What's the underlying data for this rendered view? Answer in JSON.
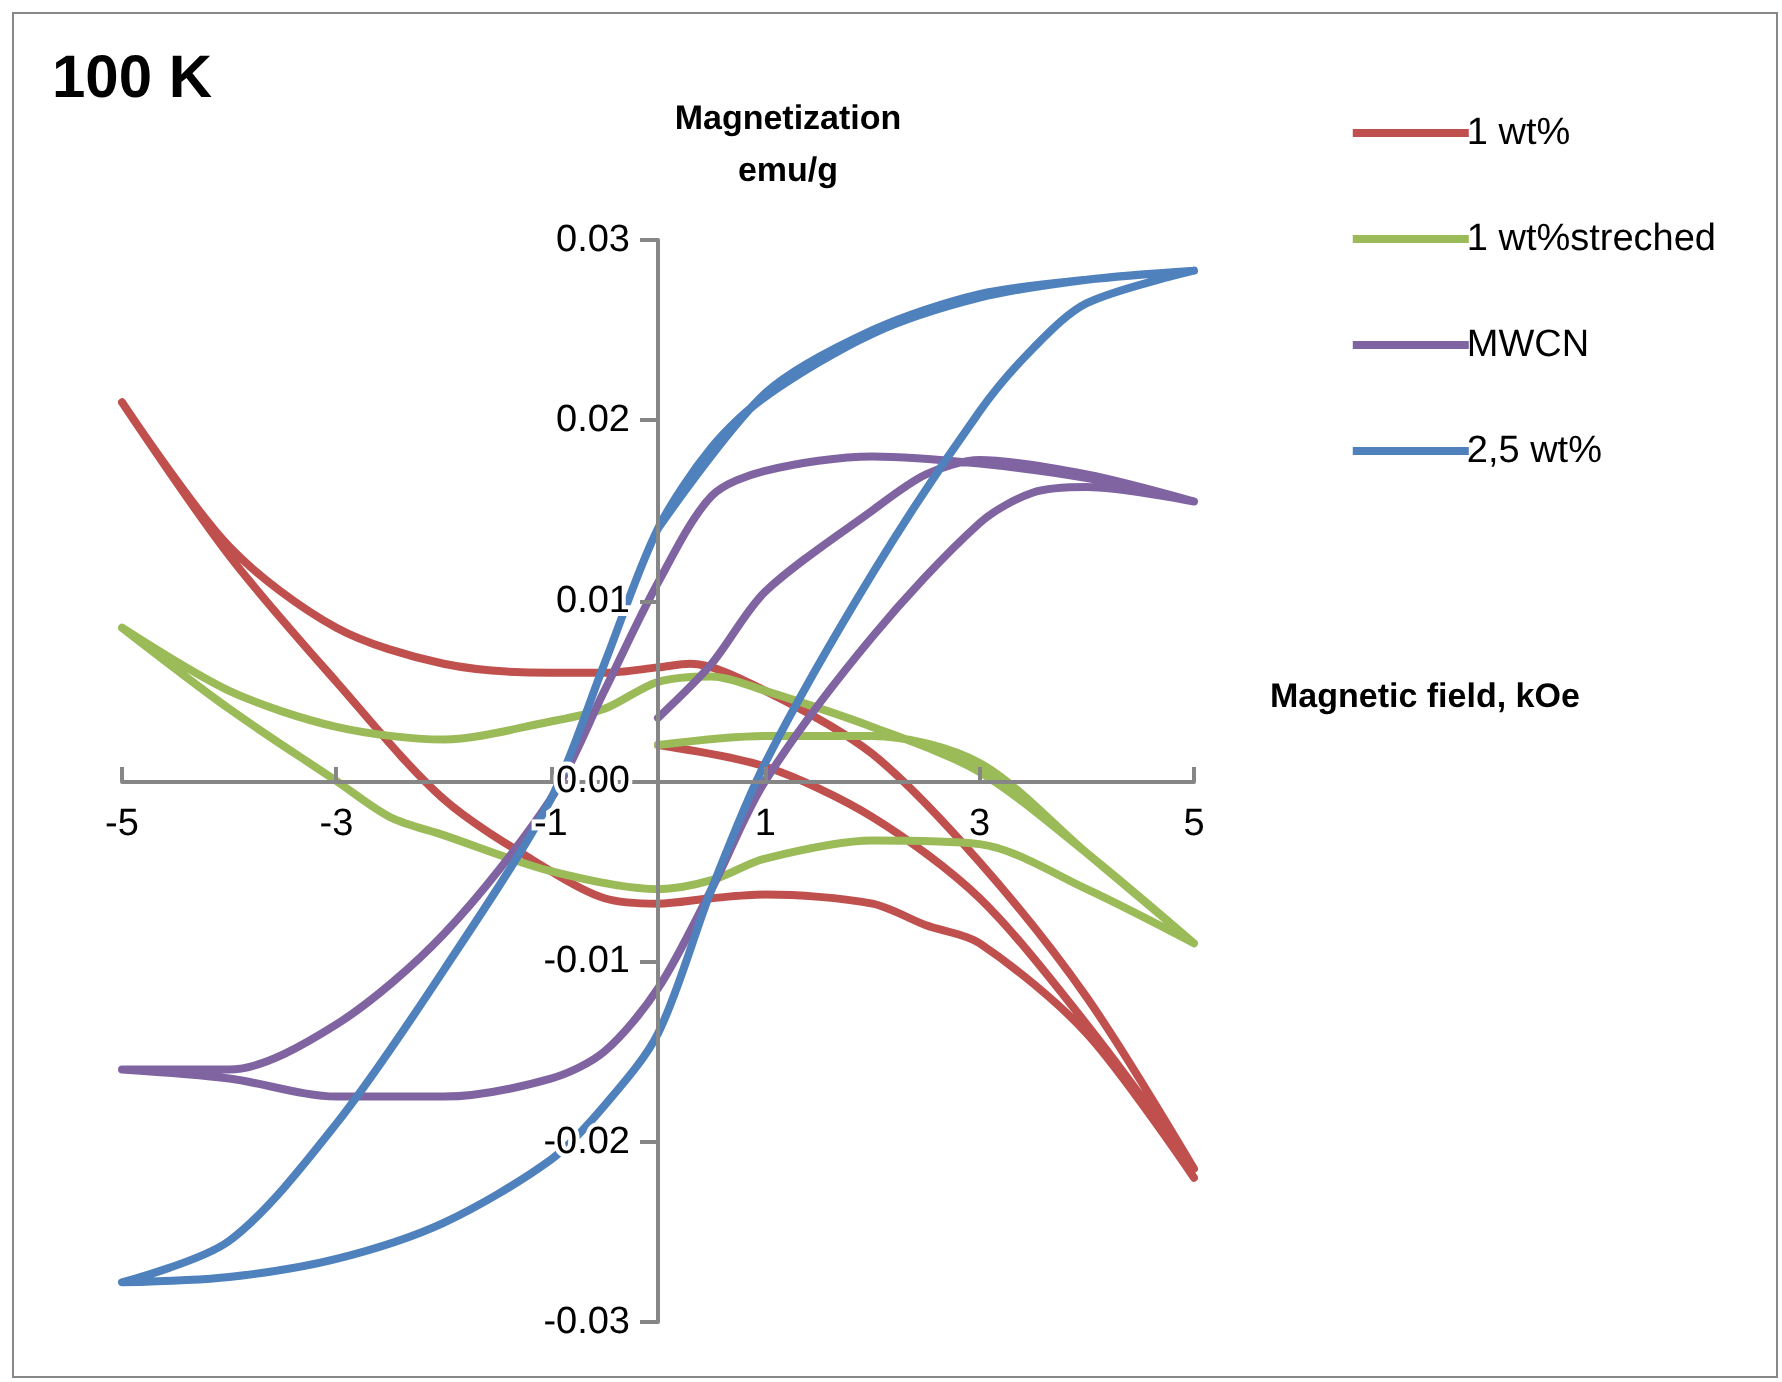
{
  "chart_data": {
    "type": "line",
    "title": "100 K",
    "xlabel": "Magnetic field, kOe",
    "ylabel": "Magnetization\nemu/g",
    "xlim": [
      -5,
      5
    ],
    "xticks": [
      -5,
      -3,
      -1,
      1,
      3,
      5
    ],
    "ylim": [
      -0.03,
      0.03
    ],
    "yticks": [
      -0.03,
      -0.02,
      -0.01,
      {
        "value": 0,
        "label": "0.00"
      },
      0.01,
      0.02,
      0.03
    ],
    "grid": false,
    "legend": "top right",
    "series": [
      {
        "name": "1 wt%",
        "color": "#c0504d",
        "x": [
          0,
          1,
          2,
          3,
          4,
          5,
          4,
          3,
          2,
          1,
          0.3,
          0,
          -0.5,
          -1,
          -2,
          -3,
          -4,
          -5,
          -4,
          -3,
          -2,
          -1,
          -0.5,
          0,
          0.5,
          1,
          2,
          2.5,
          3,
          4,
          5
        ],
        "values": [
          0.002,
          0.0008,
          -0.002,
          -0.0065,
          -0.0135,
          -0.0215,
          -0.012,
          -0.0045,
          0.0015,
          0.005,
          0.0065,
          0.0063,
          0.006,
          0.006,
          0.0065,
          0.0085,
          0.013,
          0.021,
          0.0125,
          0.0055,
          -0.001,
          -0.005,
          -0.0065,
          -0.0068,
          -0.0065,
          -0.0063,
          -0.0068,
          -0.008,
          -0.009,
          -0.014,
          -0.022
        ]
      },
      {
        "name": "1 wt%streched",
        "color": "#9bbb59",
        "x": [
          0,
          1,
          2,
          3,
          4,
          5,
          4,
          3,
          2,
          1,
          0.5,
          0,
          -0.5,
          -1,
          -2,
          -3,
          -4,
          -5,
          -4,
          -3,
          -2.5,
          -2,
          -1,
          0,
          0.5,
          1,
          2,
          3,
          4,
          5
        ],
        "values": [
          0.002,
          0.0025,
          0.0025,
          0.001,
          -0.004,
          -0.009,
          -0.004,
          0.0005,
          0.003,
          0.005,
          0.0058,
          0.0055,
          0.004,
          0.0033,
          0.0023,
          0.003,
          0.005,
          0.0085,
          0.004,
          0.0,
          -0.002,
          -0.003,
          -0.005,
          -0.006,
          -0.0055,
          -0.0043,
          -0.0033,
          -0.0035,
          -0.006,
          -0.009
        ]
      },
      {
        "name": "MWCN",
        "color": "#8064a2",
        "x": [
          0,
          0.5,
          1,
          2,
          2.5,
          3,
          4,
          5,
          4,
          3,
          2,
          1,
          0.5,
          0,
          -0.5,
          -1,
          -2,
          -3,
          -4,
          -5,
          -4,
          -3,
          -2,
          -1,
          -0.5,
          0,
          0.5,
          1,
          2,
          3,
          3.5,
          4,
          5
        ],
        "values": [
          0.0035,
          0.0065,
          0.0105,
          0.015,
          0.017,
          0.0178,
          0.017,
          0.0155,
          0.0168,
          0.0176,
          0.018,
          0.0172,
          0.0158,
          0.011,
          0.005,
          -0.001,
          -0.0085,
          -0.0135,
          -0.016,
          -0.016,
          -0.0165,
          -0.0175,
          -0.0175,
          -0.0165,
          -0.015,
          -0.0115,
          -0.006,
          0.0,
          0.008,
          0.0143,
          0.016,
          0.0163,
          0.0155
        ]
      },
      {
        "name": "2,5 wt%",
        "color": "#4f81bd",
        "x": [
          0,
          1,
          2,
          3,
          4,
          5,
          4,
          3,
          2,
          1,
          0.5,
          0,
          -0.5,
          -1,
          -2,
          -3,
          -4,
          -5,
          -4,
          -3,
          -2,
          -1,
          -0.5,
          0,
          0.5,
          1,
          2,
          3,
          3.5,
          4,
          5
        ],
        "values": [
          0.014,
          0.0215,
          0.025,
          0.027,
          0.0278,
          0.0283,
          0.0278,
          0.0268,
          0.0248,
          0.0213,
          0.0185,
          0.014,
          0.0065,
          -0.001,
          -0.0105,
          -0.019,
          -0.0255,
          -0.0278,
          -0.0275,
          -0.0265,
          -0.0245,
          -0.021,
          -0.018,
          -0.014,
          -0.006,
          0.001,
          0.0115,
          0.0205,
          0.024,
          0.0265,
          0.0283
        ]
      }
    ]
  }
}
